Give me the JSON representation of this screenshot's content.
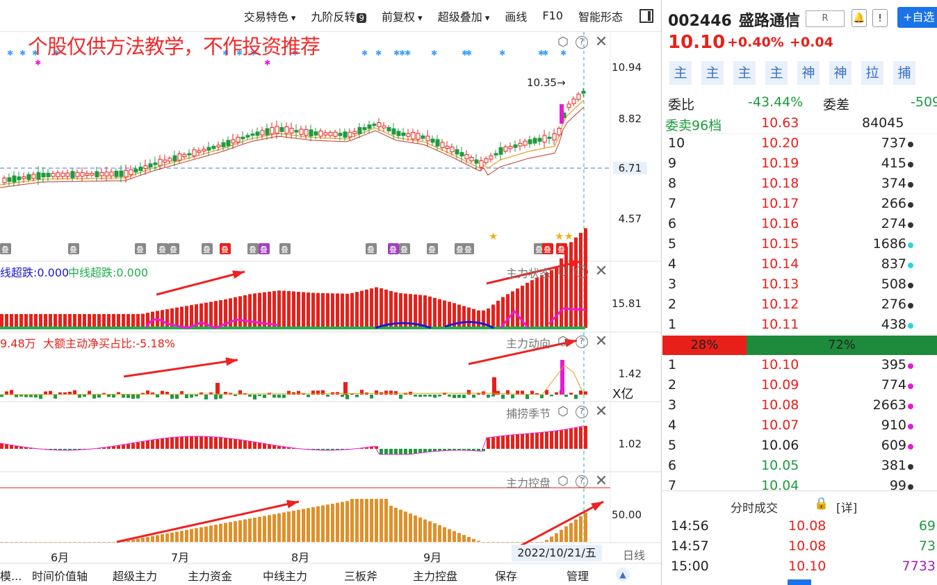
{
  "toolbar": {
    "items": [
      {
        "label": "交易特色",
        "dropdown": true
      },
      {
        "label": "九阶反转",
        "badge": "9"
      },
      {
        "label": "前复权",
        "dropdown": true
      },
      {
        "label": "超级叠加",
        "dropdown": true
      },
      {
        "label": "画线"
      },
      {
        "label": "F10"
      },
      {
        "label": "智能形态"
      }
    ]
  },
  "disclaimer": "个股仅供方法教学，不作投资推荐",
  "main_chart": {
    "price_axis": [
      "10.94",
      "8.82",
      "6.71",
      "4.57"
    ],
    "high_marker": "10.35→",
    "stack_marker_label": "叠"
  },
  "panels": [
    {
      "name": "主力状态",
      "legend": [
        {
          "text": "线超跌:0.000",
          "color": "#1a1ad6"
        },
        {
          "text": "中线超跌:0.000",
          "color": "#20b04a"
        }
      ],
      "axis": "15.81"
    },
    {
      "name": "主力动向",
      "legend": [
        {
          "text": "9.48万",
          "color": "#e8201a"
        },
        {
          "text": "大额主动净买占比:-5.18%",
          "color": "#e8201a"
        }
      ],
      "axis": "1.42",
      "unit": "X亿"
    },
    {
      "name": "捕捞季节",
      "legend": [],
      "axis": "1.02"
    },
    {
      "name": "主力控盘",
      "legend": [],
      "axis": "50.00"
    }
  ],
  "time_axis": {
    "months": [
      "6月",
      "7月",
      "8月",
      "9月"
    ],
    "cursor_date": "2022/10/21/五",
    "period": "日线"
  },
  "bottom_tabs": [
    "模...",
    "时间价值轴",
    "超级主力",
    "主力资金",
    "中线主力",
    "三板斧",
    "主力控盘",
    "保存",
    "管理"
  ],
  "stock": {
    "code": "002446",
    "name": "盛路通信",
    "r_button": "R",
    "add_button": "+自选",
    "price": "10.10",
    "pct": "+0.40%",
    "change": "+0.04",
    "tags": [
      "主",
      "主",
      "主",
      "主",
      "神",
      "神",
      "拉",
      "捕"
    ]
  },
  "orderbook": {
    "webi_label": "委比",
    "webi_value": "-43.44%",
    "weicha_label": "委差",
    "weicha_value": "-509",
    "sell96_label": "委卖96档",
    "sell96_price": "10.63",
    "sell96_vol": "84045",
    "asks": [
      {
        "level": "10",
        "price": "10.20",
        "vol": "737",
        "dot": "#333"
      },
      {
        "level": "9",
        "price": "10.19",
        "vol": "415",
        "dot": "#333"
      },
      {
        "level": "8",
        "price": "10.18",
        "vol": "374",
        "dot": "#333"
      },
      {
        "level": "7",
        "price": "10.17",
        "vol": "266",
        "dot": "#333"
      },
      {
        "level": "6",
        "price": "10.16",
        "vol": "274",
        "dot": "#333"
      },
      {
        "level": "5",
        "price": "10.15",
        "vol": "1686",
        "dot": "#2bd6d6"
      },
      {
        "level": "4",
        "price": "10.14",
        "vol": "837",
        "dot": "#2bd6d6"
      },
      {
        "level": "3",
        "price": "10.13",
        "vol": "508",
        "dot": "#333"
      },
      {
        "level": "2",
        "price": "10.12",
        "vol": "276",
        "dot": "#333"
      },
      {
        "level": "1",
        "price": "10.11",
        "vol": "438",
        "dot": "#2bd6d6"
      }
    ],
    "buy_pct": "28%",
    "sell_pct": "72%",
    "bids": [
      {
        "level": "1",
        "price": "10.10",
        "vol": "395",
        "dot": "#e81ad6",
        "pc": "r"
      },
      {
        "level": "2",
        "price": "10.09",
        "vol": "774",
        "dot": "#e81ad6",
        "pc": "r"
      },
      {
        "level": "3",
        "price": "10.08",
        "vol": "2663",
        "dot": "#e81ad6",
        "pc": "r"
      },
      {
        "level": "4",
        "price": "10.07",
        "vol": "910",
        "dot": "#e81ad6",
        "pc": "r"
      },
      {
        "level": "5",
        "price": "10.06",
        "vol": "609",
        "dot": "#e81ad6",
        "pc": "k"
      },
      {
        "level": "6",
        "price": "10.05",
        "vol": "381",
        "dot": "#333",
        "pc": "g"
      },
      {
        "level": "7",
        "price": "10.04",
        "vol": "99",
        "dot": "#333",
        "pc": "g"
      }
    ]
  },
  "trades": {
    "title": "分时成交",
    "detail": "[详]",
    "rows": [
      {
        "time": "14:56",
        "price": "10.08",
        "vol": "69",
        "vc": "#1d9b3e"
      },
      {
        "time": "14:57",
        "price": "10.08",
        "vol": "73",
        "vc": "#1d9b3e"
      },
      {
        "time": "15:00",
        "price": "10.10",
        "vol": "7733",
        "vc": "#a020c0"
      }
    ]
  },
  "colors": {
    "up": "#e8201a",
    "down": "#1d9b3e",
    "accent": "#1a73e8"
  }
}
